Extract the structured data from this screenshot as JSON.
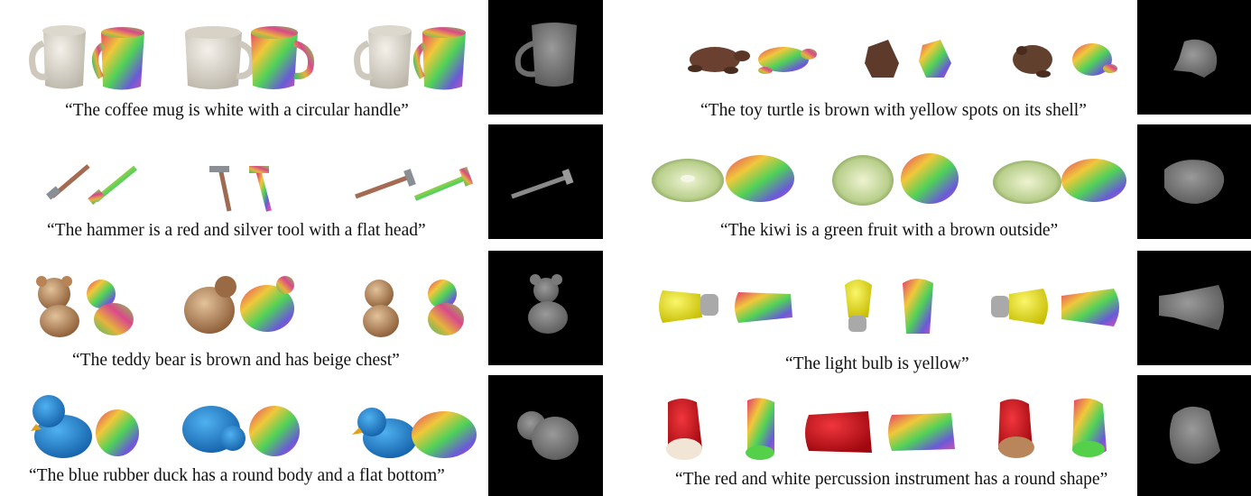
{
  "figure": {
    "panels": [
      {
        "id": "mug",
        "caption": "“The coffee mug is white with a circular handle”"
      },
      {
        "id": "turtle",
        "caption": "“The toy turtle is brown with yellow spots on its shell”"
      },
      {
        "id": "hammer",
        "caption": "“The hammer is a red and silver tool with a flat head”"
      },
      {
        "id": "kiwi",
        "caption": "“The kiwi is a green fruit with a brown outside”"
      },
      {
        "id": "teddy",
        "caption": "“The teddy bear is brown and has beige chest”"
      },
      {
        "id": "bulb",
        "caption": "“The light bulb is yellow”"
      },
      {
        "id": "duck",
        "caption": "“The blue rubber duck has a round body and a flat bottom”"
      },
      {
        "id": "drum",
        "caption": "“The red and white percussion instrument has a round shape”"
      }
    ]
  }
}
